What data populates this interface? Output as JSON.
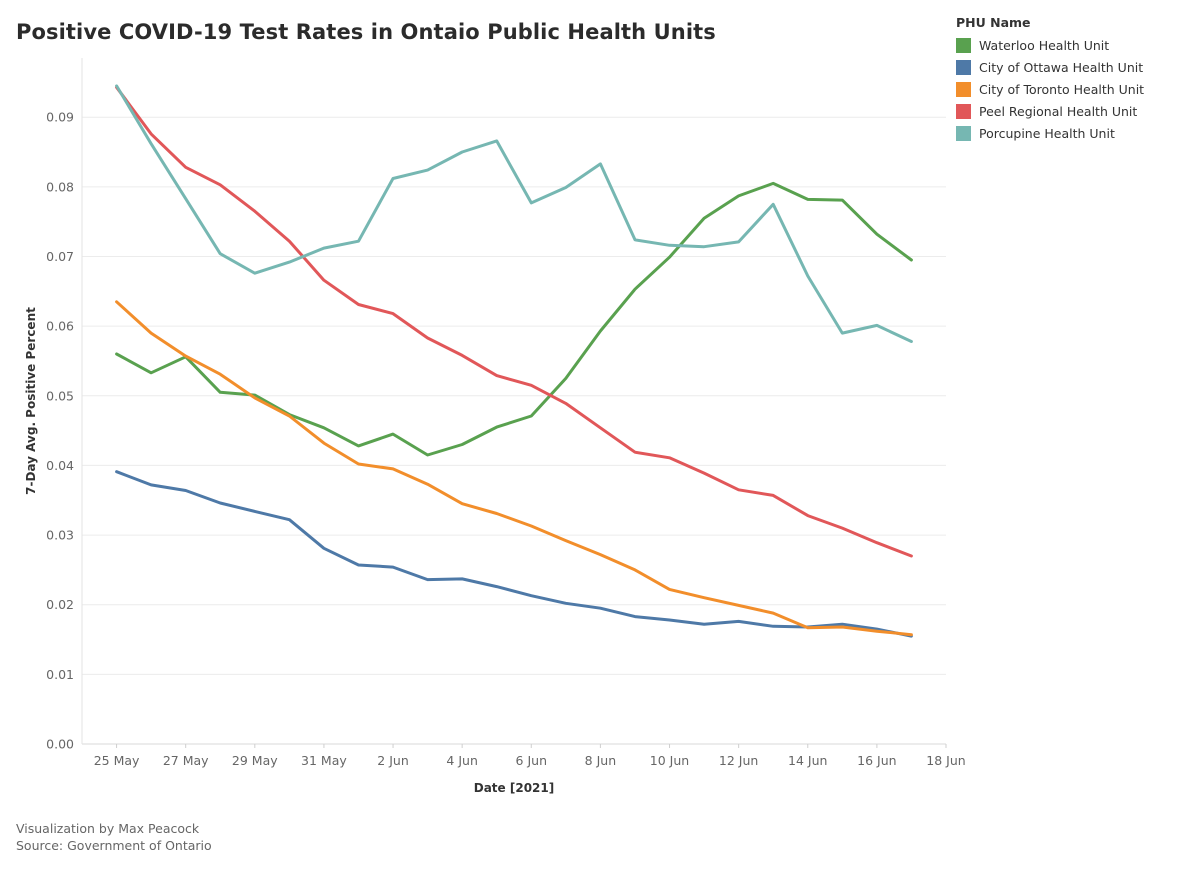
{
  "title": "Positive COVID-19 Test Rates in Ontaio Public Health Units",
  "legend": {
    "title": "PHU Name",
    "items": [
      {
        "label": "Waterloo Health Unit",
        "color": "#59a14f"
      },
      {
        "label": "City of Ottawa Health Unit",
        "color": "#4e79a7"
      },
      {
        "label": "City of Toronto Health Unit",
        "color": "#f28e2b"
      },
      {
        "label": "Peel Regional Health Unit",
        "color": "#e15759"
      },
      {
        "label": "Porcupine Health Unit",
        "color": "#76b7b2"
      }
    ]
  },
  "footer": {
    "credit": "Visualization by Max Peacock",
    "source": "Source: Government of Ontario"
  },
  "chart_data": {
    "type": "line",
    "title": "Positive COVID-19 Test Rates in Ontaio Public Health Units",
    "xlabel": "Date [2021]",
    "ylabel": "7-Day Avg. Positive Percent",
    "x": [
      "2021-05-25",
      "2021-05-26",
      "2021-05-27",
      "2021-05-28",
      "2021-05-29",
      "2021-05-30",
      "2021-05-31",
      "2021-06-01",
      "2021-06-02",
      "2021-06-03",
      "2021-06-04",
      "2021-06-05",
      "2021-06-06",
      "2021-06-07",
      "2021-06-08",
      "2021-06-09",
      "2021-06-10",
      "2021-06-11",
      "2021-06-12",
      "2021-06-13",
      "2021-06-14",
      "2021-06-15",
      "2021-06-16",
      "2021-06-17"
    ],
    "x_ticks": [
      "25 May",
      "27 May",
      "29 May",
      "31 May",
      "2 Jun",
      "4 Jun",
      "6 Jun",
      "8 Jun",
      "10 Jun",
      "12 Jun",
      "14 Jun",
      "16 Jun",
      "18 Jun"
    ],
    "x_tick_dates": [
      "2021-05-25",
      "2021-05-27",
      "2021-05-29",
      "2021-05-31",
      "2021-06-02",
      "2021-06-04",
      "2021-06-06",
      "2021-06-08",
      "2021-06-10",
      "2021-06-12",
      "2021-06-14",
      "2021-06-16",
      "2021-06-18"
    ],
    "xlim": [
      "2021-05-24",
      "2021-06-18"
    ],
    "y_ticks": [
      "0.00",
      "0.01",
      "0.02",
      "0.03",
      "0.04",
      "0.05",
      "0.06",
      "0.07",
      "0.08",
      "0.09"
    ],
    "ylim": [
      0,
      0.0985
    ],
    "grid": "horizontal",
    "legend_position": "top-right",
    "series": [
      {
        "name": "Waterloo Health Unit",
        "color": "#59a14f",
        "values": [
          0.056,
          0.0533,
          0.0556,
          0.0505,
          0.0501,
          0.0473,
          0.0454,
          0.0428,
          0.0445,
          0.0415,
          0.043,
          0.0455,
          0.0471,
          0.0525,
          0.0593,
          0.0653,
          0.0699,
          0.0755,
          0.0787,
          0.0805,
          0.0782,
          0.0781,
          0.0732,
          0.0695
        ]
      },
      {
        "name": "City of Ottawa Health Unit",
        "color": "#4e79a7",
        "values": [
          0.0391,
          0.0372,
          0.0364,
          0.0346,
          0.0334,
          0.0322,
          0.0281,
          0.0257,
          0.0254,
          0.0236,
          0.0237,
          0.0226,
          0.0213,
          0.0202,
          0.0195,
          0.0183,
          0.0178,
          0.0172,
          0.0176,
          0.0169,
          0.0168,
          0.0172,
          0.0165,
          0.0155
        ]
      },
      {
        "name": "City of Toronto Health Unit",
        "color": "#f28e2b",
        "values": [
          0.0635,
          0.059,
          0.0557,
          0.0531,
          0.0497,
          0.0471,
          0.0432,
          0.0402,
          0.0395,
          0.0373,
          0.0345,
          0.0331,
          0.0313,
          0.0292,
          0.0272,
          0.025,
          0.0222,
          0.021,
          0.0199,
          0.0188,
          0.0167,
          0.0168,
          0.0162,
          0.0157
        ]
      },
      {
        "name": "Peel Regional Health Unit",
        "color": "#e15759",
        "values": [
          0.0943,
          0.0876,
          0.0828,
          0.0803,
          0.0765,
          0.0722,
          0.0666,
          0.0631,
          0.0618,
          0.0583,
          0.0558,
          0.0529,
          0.0515,
          0.0489,
          0.0454,
          0.0419,
          0.0411,
          0.0389,
          0.0365,
          0.0357,
          0.0328,
          0.031,
          0.0289,
          0.027
        ]
      },
      {
        "name": "Porcupine Health Unit",
        "color": "#76b7b2",
        "values": [
          0.0945,
          0.0862,
          0.0783,
          0.0704,
          0.0676,
          0.0692,
          0.0712,
          0.0722,
          0.0812,
          0.0824,
          0.085,
          0.0866,
          0.0777,
          0.0799,
          0.0833,
          0.0724,
          0.0716,
          0.0714,
          0.0721,
          0.0775,
          0.0672,
          0.059,
          0.0601,
          0.0578
        ]
      }
    ]
  }
}
